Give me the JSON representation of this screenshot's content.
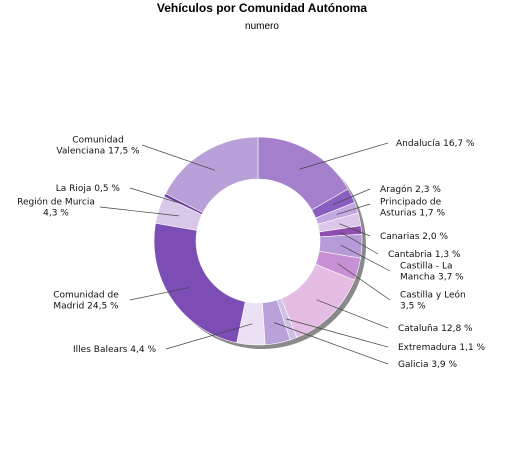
{
  "chart_data": {
    "type": "pie",
    "title": "Vehículos por Comunidad Autónoma",
    "subtitle": "numero",
    "unit": "%",
    "slices": [
      {
        "label": "Andalucía 16,7 %",
        "name": "Andalucía",
        "value": 16.7,
        "color": "#a47fcb"
      },
      {
        "label": "Aragón 2,3 %",
        "name": "Aragón",
        "value": 2.3,
        "color": "#8a5ec0"
      },
      {
        "label": "Principado de Asturias 1,7 %",
        "name": "Principado de Asturias",
        "value": 1.7,
        "color": "#c3a9df"
      },
      {
        "label": "Canarias 2,0 %",
        "name": "Canarias",
        "value": 2.0,
        "color": "#dcc6ea"
      },
      {
        "label": "Cantabria 1,3 %",
        "name": "Cantabria",
        "value": 1.3,
        "color": "#8f4fb0"
      },
      {
        "label": "Castilla - La Mancha 3,7 %",
        "name": "Castilla - La Mancha",
        "value": 3.7,
        "color": "#b79ad8"
      },
      {
        "label": "Castilla y León 3,5 %",
        "name": "Castilla y León",
        "value": 3.5,
        "color": "#c890d4"
      },
      {
        "label": "Cataluña 12,8 %",
        "name": "Cataluña",
        "value": 12.8,
        "color": "#e5bde4"
      },
      {
        "label": "Extremadura 1,1 %",
        "name": "Extremadura",
        "value": 1.1,
        "color": "#cfc0e6"
      },
      {
        "label": "Galicia 3,9 %",
        "name": "Galicia",
        "value": 3.9,
        "color": "#b9a2da"
      },
      {
        "label": "Illes Balears 4,4 %",
        "name": "Illes Balears",
        "value": 4.4,
        "color": "#ebe1f4"
      },
      {
        "label": "Comunidad de Madrid 24,5 %",
        "name": "Comunidad de Madrid",
        "value": 24.5,
        "color": "#7b4db5"
      },
      {
        "label": "Región de Murcia 4,3 %",
        "name": "Región de Murcia",
        "value": 4.3,
        "color": "#dac8ea"
      },
      {
        "label": "La Rioja 0,5 %",
        "name": "La Rioja",
        "value": 0.5,
        "color": "#6a3a9e"
      },
      {
        "label": "Comunidad Valenciana 17,5 %",
        "name": "Comunidad Valenciana",
        "value": 17.5,
        "color": "#b8a0d8"
      }
    ]
  }
}
